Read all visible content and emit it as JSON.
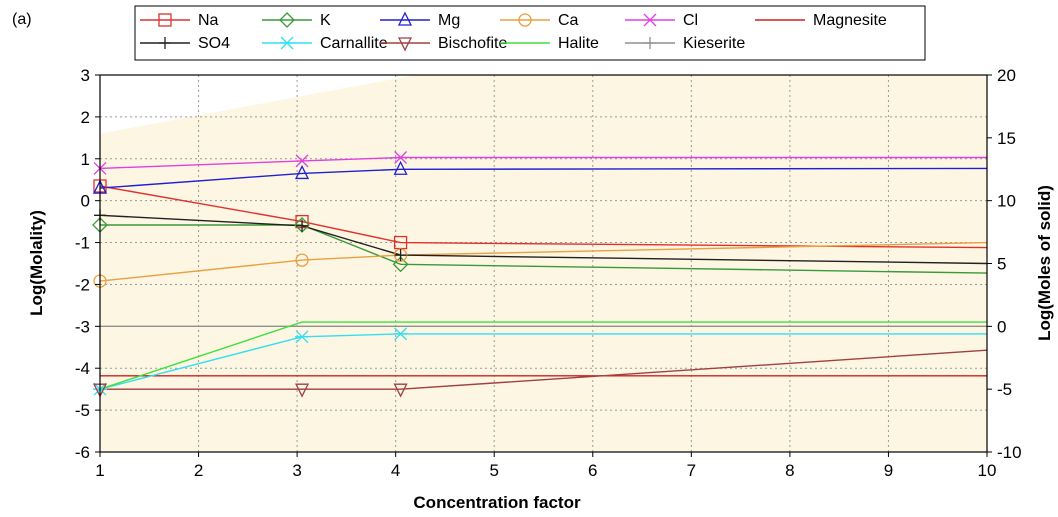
{
  "panel_label": "(a)",
  "colors": {
    "Na": "#e03030",
    "K": "#3a9a3a",
    "Mg": "#2020d0",
    "Ca": "#e8a040",
    "Cl": "#e040e0",
    "Magnesite": "#d02020",
    "SO4": "#202020",
    "Carnallite": "#30e0f0",
    "Bischofite": "#a04040",
    "Halite": "#40e040",
    "Kieserite": "#909090",
    "background_fill": "#fdf6e3"
  },
  "legend": {
    "position": "top",
    "rows": [
      [
        {
          "label": "Na",
          "key": "Na",
          "marker": "square"
        },
        {
          "label": "K",
          "key": "K",
          "marker": "diamond"
        },
        {
          "label": "Mg",
          "key": "Mg",
          "marker": "triangle-up"
        },
        {
          "label": "Ca",
          "key": "Ca",
          "marker": "circle"
        },
        {
          "label": "Cl",
          "key": "Cl",
          "marker": "x"
        },
        {
          "label": "Magnesite",
          "key": "Magnesite",
          "marker": "none"
        }
      ],
      [
        {
          "label": "SO4",
          "key": "SO4",
          "marker": "plus"
        },
        {
          "label": "Carnallite",
          "key": "Carnallite",
          "marker": "star"
        },
        {
          "label": "Bischofite",
          "key": "Bischofite",
          "marker": "triangle-down"
        },
        {
          "label": "Halite",
          "key": "Halite",
          "marker": "none"
        },
        {
          "label": "Kieserite",
          "key": "Kieserite",
          "marker": "plus"
        }
      ]
    ]
  },
  "chart_data": {
    "type": "line",
    "xlabel": "Concentration factor",
    "ylabel": "Log(Molality)",
    "y2label": "Log(Moles of solid)",
    "xlim": [
      1,
      10
    ],
    "ylim": [
      -6,
      3
    ],
    "y2lim": [
      -10,
      20
    ],
    "x_ticks": [
      1,
      2,
      3,
      4,
      5,
      6,
      7,
      8,
      9,
      10
    ],
    "y_ticks": [
      3,
      2,
      1,
      0,
      -1,
      -2,
      -3,
      -4,
      -5,
      -6
    ],
    "y2_ticks": [
      20,
      15,
      10,
      5,
      0,
      -5,
      -10
    ],
    "grid": true,
    "series": [
      {
        "name": "Na",
        "axis": "left",
        "marker": "square",
        "points": [
          [
            1,
            0.35
          ],
          [
            3.05,
            -0.5
          ],
          [
            4.05,
            -1.0
          ],
          [
            10,
            -1.12
          ]
        ],
        "marker_points": [
          [
            1,
            0.35
          ],
          [
            3.05,
            -0.5
          ],
          [
            4.05,
            -1.0
          ]
        ]
      },
      {
        "name": "K",
        "axis": "left",
        "marker": "diamond",
        "points": [
          [
            1,
            -0.58
          ],
          [
            3.05,
            -0.58
          ],
          [
            4.05,
            -1.52
          ],
          [
            10,
            -1.73
          ]
        ],
        "marker_points": [
          [
            1,
            -0.58
          ],
          [
            3.05,
            -0.58
          ],
          [
            4.05,
            -1.52
          ]
        ]
      },
      {
        "name": "Mg",
        "axis": "left",
        "marker": "triangle-up",
        "points": [
          [
            1,
            0.3
          ],
          [
            3.05,
            0.65
          ],
          [
            4.05,
            0.75
          ],
          [
            10,
            0.77
          ]
        ],
        "marker_points": [
          [
            1,
            0.3
          ],
          [
            3.05,
            0.65
          ],
          [
            4.05,
            0.75
          ]
        ]
      },
      {
        "name": "Ca",
        "axis": "left",
        "marker": "circle",
        "points": [
          [
            1,
            -1.92
          ],
          [
            3.05,
            -1.42
          ],
          [
            4.05,
            -1.3
          ],
          [
            10,
            -1.0
          ]
        ],
        "marker_points": [
          [
            1,
            -1.92
          ],
          [
            3.05,
            -1.42
          ],
          [
            4.05,
            -1.3
          ]
        ]
      },
      {
        "name": "Cl",
        "axis": "left",
        "marker": "x",
        "points": [
          [
            1,
            0.77
          ],
          [
            3.05,
            0.95
          ],
          [
            4.05,
            1.03
          ],
          [
            10,
            1.03
          ]
        ],
        "marker_points": [
          [
            1,
            0.77
          ],
          [
            3.05,
            0.95
          ],
          [
            4.05,
            1.03
          ]
        ]
      },
      {
        "name": "SO4",
        "axis": "left",
        "marker": "plus",
        "points": [
          [
            1,
            -0.35
          ],
          [
            3.05,
            -0.6
          ],
          [
            4.05,
            -1.3
          ],
          [
            10,
            -1.5
          ]
        ],
        "marker_points": [
          [
            1,
            -0.35
          ],
          [
            3.05,
            -0.6
          ],
          [
            4.05,
            -1.3
          ]
        ]
      },
      {
        "name": "Magnesite",
        "axis": "left",
        "marker": "none",
        "points": [
          [
            1,
            -4.18
          ],
          [
            10,
            -4.18
          ]
        ],
        "marker_points": []
      },
      {
        "name": "Kieserite",
        "axis": "left",
        "marker": "none",
        "points": [
          [
            1,
            -3.0
          ],
          [
            10,
            -3.0
          ]
        ],
        "marker_points": []
      },
      {
        "name": "Carnallite",
        "axis": "left",
        "marker": "star",
        "points": [
          [
            1,
            -4.5
          ],
          [
            3.05,
            -3.25
          ],
          [
            4.05,
            -3.18
          ],
          [
            10,
            -3.18
          ]
        ],
        "marker_points": [
          [
            1,
            -4.5
          ],
          [
            3.05,
            -3.25
          ],
          [
            4.05,
            -3.18
          ]
        ]
      },
      {
        "name": "Bischofite",
        "axis": "left",
        "marker": "triangle-down",
        "points": [
          [
            1,
            -4.5
          ],
          [
            4.05,
            -4.5
          ],
          [
            10,
            -3.57
          ]
        ],
        "marker_points": [
          [
            1,
            -4.5
          ],
          [
            3.05,
            -4.5
          ],
          [
            4.05,
            -4.5
          ]
        ]
      },
      {
        "name": "Halite",
        "axis": "left",
        "marker": "none",
        "points": [
          [
            1,
            -4.5
          ],
          [
            3.05,
            -2.9
          ],
          [
            10,
            -2.9
          ]
        ],
        "marker_points": []
      }
    ]
  }
}
